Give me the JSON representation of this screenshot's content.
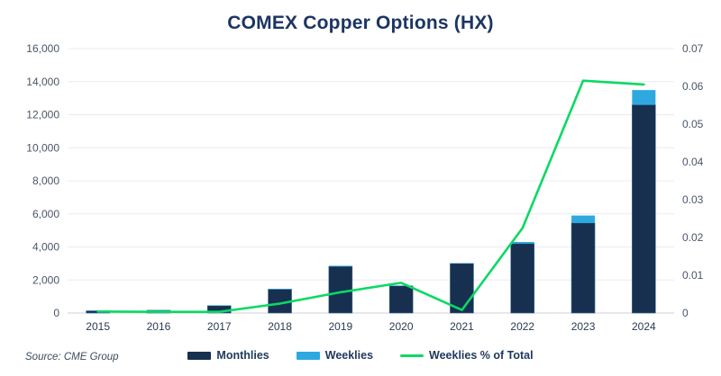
{
  "title": "COMEX Copper Options (HX)",
  "source": "Source: CME Group",
  "legend": {
    "monthlies_label": "Monthlies",
    "weeklies_label": "Weeklies",
    "pct_label": "Weeklies % of Total"
  },
  "colors": {
    "monthlies": "#17304f",
    "monthlies_edge": "#3f6c9c",
    "weeklies": "#2ea9e0",
    "pct_line": "#0bd964",
    "grid": "#ececf0",
    "baseline": "#d9d9de",
    "tick_text": "#4a5568",
    "year_text": "#2b3a52",
    "title_text": "#1b3563"
  },
  "chart_data": {
    "type": "bar",
    "subtype": "stacked-bar-with-line",
    "title": "COMEX Copper Options (HX)",
    "categories": [
      "2015",
      "2016",
      "2017",
      "2018",
      "2019",
      "2020",
      "2021",
      "2022",
      "2023",
      "2024"
    ],
    "series": [
      {
        "name": "Monthlies",
        "type": "bar",
        "stack": "total",
        "axis": "left",
        "values": [
          140,
          170,
          450,
          1440,
          2820,
          1640,
          3000,
          4200,
          5450,
          12600
        ]
      },
      {
        "name": "Weeklies",
        "type": "bar",
        "stack": "total",
        "axis": "left",
        "values": [
          5,
          5,
          10,
          20,
          40,
          30,
          20,
          100,
          450,
          890
        ]
      },
      {
        "name": "Weeklies % of Total",
        "type": "line",
        "axis": "right",
        "values": [
          0.0004,
          0.0003,
          0.0003,
          0.0025,
          0.0055,
          0.008,
          0.0008,
          0.0225,
          0.0615,
          0.0605
        ]
      }
    ],
    "left_axis": {
      "min": 0,
      "max": 16000,
      "step": 2000,
      "tick_labels": [
        "0",
        "2,000",
        "4,000",
        "6,000",
        "8,000",
        "10,000",
        "12,000",
        "14,000",
        "16,000"
      ]
    },
    "right_axis": {
      "min": 0,
      "max": 0.07,
      "step": 0.01,
      "tick_labels": [
        "0",
        "0.01",
        "0.02",
        "0.03",
        "0.04",
        "0.05",
        "0.06",
        "0.07"
      ]
    },
    "grid": "horizontal",
    "legend_position": "bottom"
  }
}
